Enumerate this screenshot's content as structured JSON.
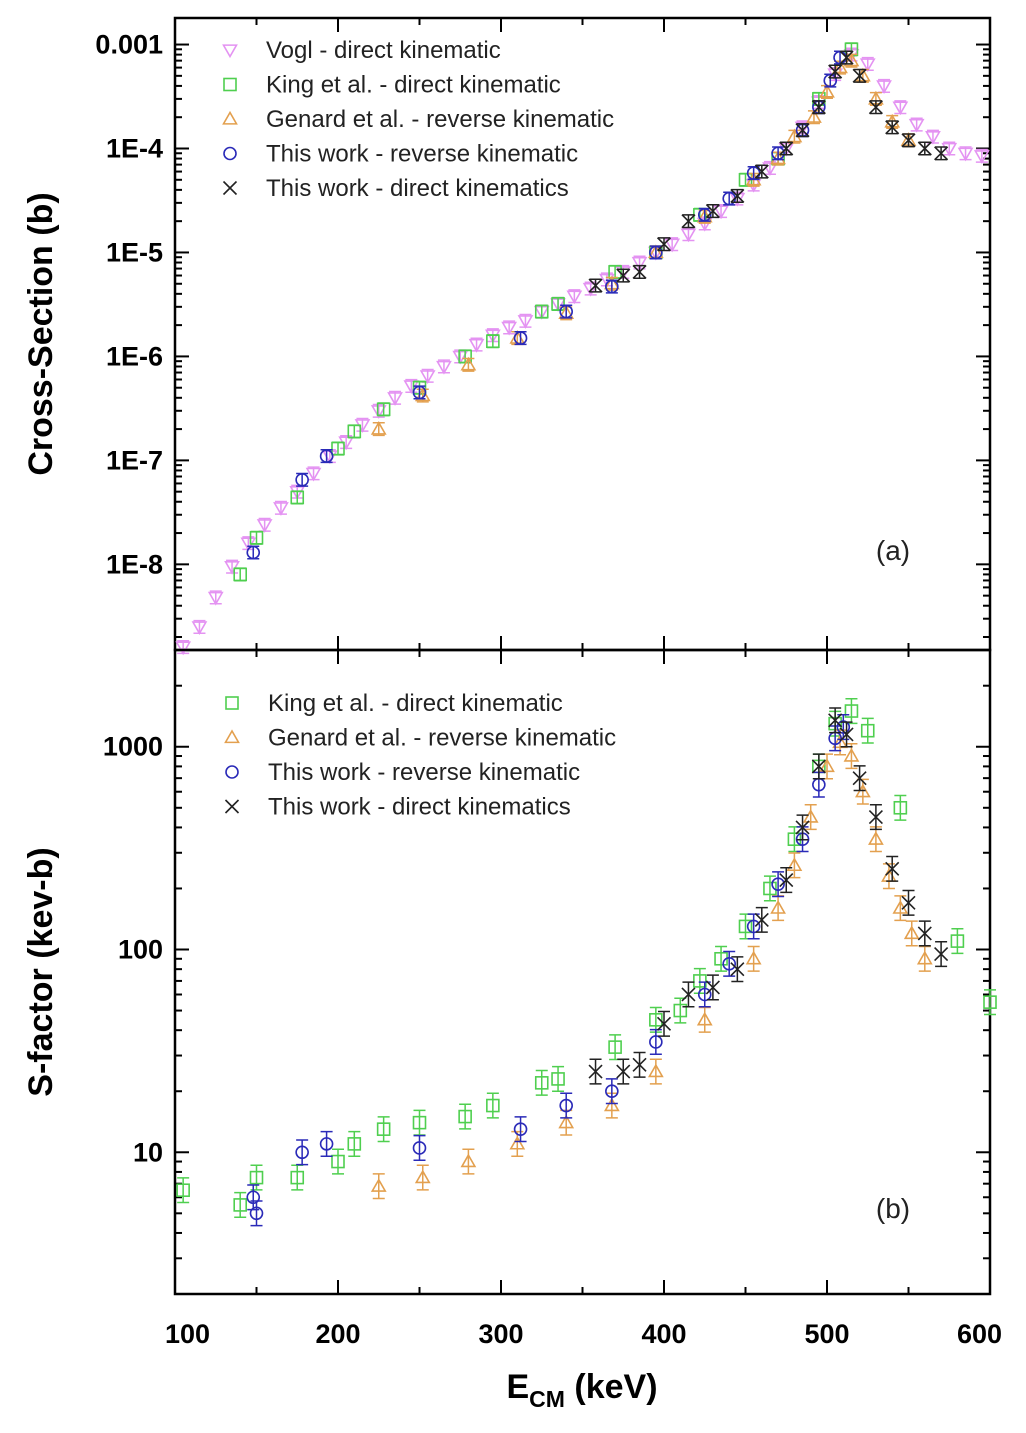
{
  "figure": {
    "xlabel_main": "E",
    "xlabel_sub": "CM",
    "xlabel_unit": " (keV)",
    "x_ticks": [
      "100",
      "200",
      "300",
      "400",
      "500",
      "600"
    ]
  },
  "styles": {
    "Vogl": {
      "color": "#e493f2",
      "marker": "triangle-down"
    },
    "King": {
      "color": "#4fcf4f",
      "marker": "square"
    },
    "Genard": {
      "color": "#e3a04f",
      "marker": "triangle-up"
    },
    "ThisRev": {
      "color": "#2a2ab8",
      "marker": "circle"
    },
    "ThisDir": {
      "color": "#222222",
      "marker": "cross"
    }
  },
  "chart_data": [
    {
      "type": "scatter",
      "panel_label": "(a)",
      "ylabel": "Cross-Section (b)",
      "xlim": [
        100,
        600
      ],
      "ylim": [
        1.5e-09,
        0.0018
      ],
      "yscale": "log",
      "y_ticks": [
        {
          "value": 1e-08,
          "label": "1E-8"
        },
        {
          "value": 1e-07,
          "label": "1E-7"
        },
        {
          "value": 1e-06,
          "label": "1E-6"
        },
        {
          "value": 1e-05,
          "label": "1E-5"
        },
        {
          "value": 0.0001,
          "label": "1E-4"
        },
        {
          "value": 0.001,
          "label": "0.001"
        }
      ],
      "legend_position": "top-left",
      "series": [
        {
          "name": "Vogl - direct kinematic",
          "style": "Vogl",
          "x": [
            105,
            115,
            125,
            135,
            145,
            155,
            165,
            175,
            185,
            195,
            205,
            215,
            225,
            235,
            245,
            255,
            265,
            275,
            285,
            295,
            305,
            315,
            325,
            335,
            345,
            355,
            365,
            375,
            385,
            395,
            405,
            415,
            425,
            435,
            445,
            455,
            465,
            475,
            485,
            495,
            505,
            515,
            525,
            535,
            545,
            555,
            565,
            575,
            585,
            595
          ],
          "y": [
            1.6e-09,
            2.5e-09,
            4.8e-09,
            9.5e-09,
            1.6e-08,
            2.4e-08,
            3.5e-08,
            5e-08,
            7.5e-08,
            1.1e-07,
            1.5e-07,
            2.2e-07,
            3e-07,
            4e-07,
            5.2e-07,
            6.5e-07,
            8e-07,
            1e-06,
            1.3e-06,
            1.6e-06,
            1.9e-06,
            2.2e-06,
            2.7e-06,
            3.2e-06,
            3.8e-06,
            4.5e-06,
            5.5e-06,
            6.5e-06,
            8e-06,
            1e-05,
            1.2e-05,
            1.5e-05,
            1.9e-05,
            2.5e-05,
            3.3e-05,
            4.5e-05,
            6.5e-05,
            0.0001,
            0.00016,
            0.00028,
            0.00052,
            0.0008,
            0.00065,
            0.0004,
            0.00025,
            0.00017,
            0.00013,
            0.0001,
            9e-05,
            8.5e-05
          ]
        },
        {
          "name": "King et al. - direct kinematic",
          "style": "King",
          "x": [
            140,
            150,
            175,
            200,
            210,
            228,
            250,
            278,
            295,
            325,
            335,
            370,
            395,
            422,
            450,
            470,
            495,
            515
          ],
          "y": [
            8e-09,
            1.8e-08,
            4.4e-08,
            1.3e-07,
            1.9e-07,
            3.1e-07,
            5e-07,
            1e-06,
            1.4e-06,
            2.7e-06,
            3.2e-06,
            6.5e-06,
            1e-05,
            2.3e-05,
            5e-05,
            8e-05,
            0.0003,
            0.0009
          ]
        },
        {
          "name": "Genard et al. - reverse kinematic",
          "style": "Genard",
          "x": [
            225,
            252,
            280,
            310,
            340,
            368,
            395,
            425,
            455,
            470,
            480,
            492,
            500,
            508,
            515,
            522,
            530,
            540,
            550
          ],
          "y": [
            2e-07,
            4.2e-07,
            8.3e-07,
            1.5e-06,
            2.6e-06,
            5e-06,
            1e-05,
            2.2e-05,
            5e-05,
            8e-05,
            0.00013,
            0.0002,
            0.00035,
            0.0006,
            0.0007,
            0.0005,
            0.0003,
            0.00018,
            0.00012
          ]
        },
        {
          "name": "This work - reverse kinematic",
          "style": "ThisRev",
          "x": [
            148,
            178,
            193,
            250,
            312,
            340,
            368,
            395,
            425,
            440,
            455,
            470,
            485,
            495,
            502,
            508
          ],
          "y": [
            1.3e-08,
            6.5e-08,
            1.1e-07,
            4.5e-07,
            1.5e-06,
            2.7e-06,
            4.7e-06,
            1e-05,
            2.3e-05,
            3.3e-05,
            5.8e-05,
            9e-05,
            0.00015,
            0.00025,
            0.00045,
            0.00075
          ]
        },
        {
          "name": "This work - direct kinematics",
          "style": "ThisDir",
          "x": [
            358,
            375,
            385,
            400,
            415,
            430,
            445,
            460,
            475,
            485,
            495,
            505,
            512,
            520,
            530,
            540,
            550,
            560,
            570
          ],
          "y": [
            4.8e-06,
            6e-06,
            6.5e-06,
            1.2e-05,
            2e-05,
            2.5e-05,
            3.5e-05,
            6e-05,
            0.0001,
            0.00015,
            0.00025,
            0.00055,
            0.00075,
            0.0005,
            0.00025,
            0.00016,
            0.00012,
            0.0001,
            9e-05
          ]
        }
      ]
    },
    {
      "type": "scatter",
      "panel_label": "(b)",
      "ylabel": "S-factor (kev-b)",
      "xlim": [
        100,
        600
      ],
      "ylim": [
        2,
        3000
      ],
      "yscale": "log",
      "y_ticks": [
        {
          "value": 10,
          "label": "10"
        },
        {
          "value": 100,
          "label": "100"
        },
        {
          "value": 1000,
          "label": "1000"
        }
      ],
      "legend_position": "top-left",
      "series": [
        {
          "name": "King et al. - direct kinematic",
          "style": "King",
          "x": [
            105,
            140,
            150,
            175,
            200,
            210,
            228,
            250,
            278,
            295,
            325,
            335,
            370,
            395,
            410,
            422,
            435,
            450,
            465,
            480,
            495,
            505,
            515,
            525,
            545,
            580,
            600
          ],
          "y": [
            6.5,
            5.5,
            7.5,
            7.5,
            9,
            11,
            13,
            14,
            15,
            17,
            22,
            23,
            33,
            45,
            50,
            70,
            90,
            130,
            200,
            350,
            800,
            1300,
            1500,
            1200,
            500,
            110,
            55
          ]
        },
        {
          "name": "Genard et al. - reverse kinematic",
          "style": "Genard",
          "x": [
            225,
            252,
            280,
            310,
            340,
            368,
            395,
            425,
            455,
            470,
            480,
            490,
            500,
            508,
            515,
            522,
            530,
            538,
            545,
            552,
            560
          ],
          "y": [
            6.8,
            7.5,
            9,
            11,
            14,
            17,
            25,
            45,
            90,
            160,
            260,
            450,
            800,
            1050,
            900,
            600,
            350,
            230,
            160,
            120,
            90
          ]
        },
        {
          "name": "This work - reverse kinematic",
          "style": "ThisRev",
          "x": [
            148,
            150,
            178,
            193,
            250,
            312,
            340,
            368,
            395,
            425,
            440,
            455,
            470,
            485,
            495,
            505,
            510
          ],
          "y": [
            6,
            5,
            10,
            11,
            10.5,
            13,
            17,
            20,
            35,
            60,
            85,
            130,
            210,
            350,
            650,
            1100,
            1250
          ]
        },
        {
          "name": "This work - direct kinematics",
          "style": "ThisDir",
          "x": [
            358,
            375,
            385,
            400,
            415,
            430,
            445,
            460,
            475,
            485,
            495,
            505,
            512,
            520,
            530,
            540,
            550,
            560,
            570
          ],
          "y": [
            25,
            25,
            27,
            43,
            60,
            65,
            80,
            140,
            220,
            400,
            800,
            1350,
            1150,
            700,
            450,
            250,
            170,
            120,
            95
          ]
        }
      ]
    }
  ]
}
